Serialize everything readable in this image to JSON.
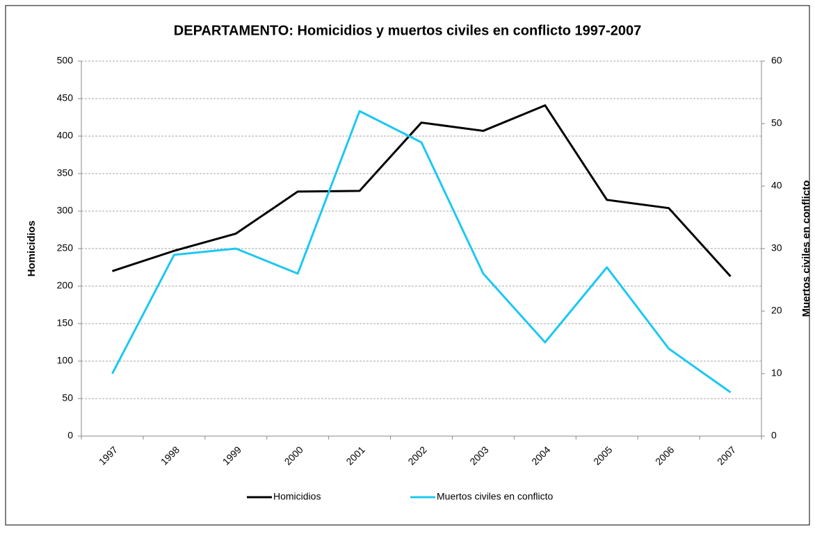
{
  "chart_data": {
    "type": "line",
    "title": "DEPARTAMENTO: Homicidios y muertos civiles en conflicto 1997-2007",
    "categories": [
      "1997",
      "1998",
      "1999",
      "2000",
      "2001",
      "2002",
      "2003",
      "2004",
      "2005",
      "2006",
      "2007"
    ],
    "series": [
      {
        "name": "Homicidios",
        "color": "#000000",
        "values": [
          220,
          247,
          270,
          326,
          327,
          418,
          407,
          441,
          315,
          304,
          213
        ]
      },
      {
        "name": "Muertos civiles en conflicto",
        "color": "#1cc8f0",
        "axis": "y2",
        "values": [
          10,
          29,
          30,
          26,
          52,
          47,
          26,
          15,
          27,
          14,
          7
        ]
      }
    ],
    "ylabel": "Homicidios",
    "y2label": "Muertos civiles en conflicto",
    "ylim": [
      0,
      500
    ],
    "yticks": [
      0,
      50,
      100,
      150,
      200,
      250,
      300,
      350,
      400,
      450,
      500
    ],
    "y2lim": [
      0,
      60
    ],
    "y2ticks": [
      0,
      10,
      20,
      30,
      40,
      50,
      60
    ],
    "grid": true,
    "legend": "bottom"
  }
}
